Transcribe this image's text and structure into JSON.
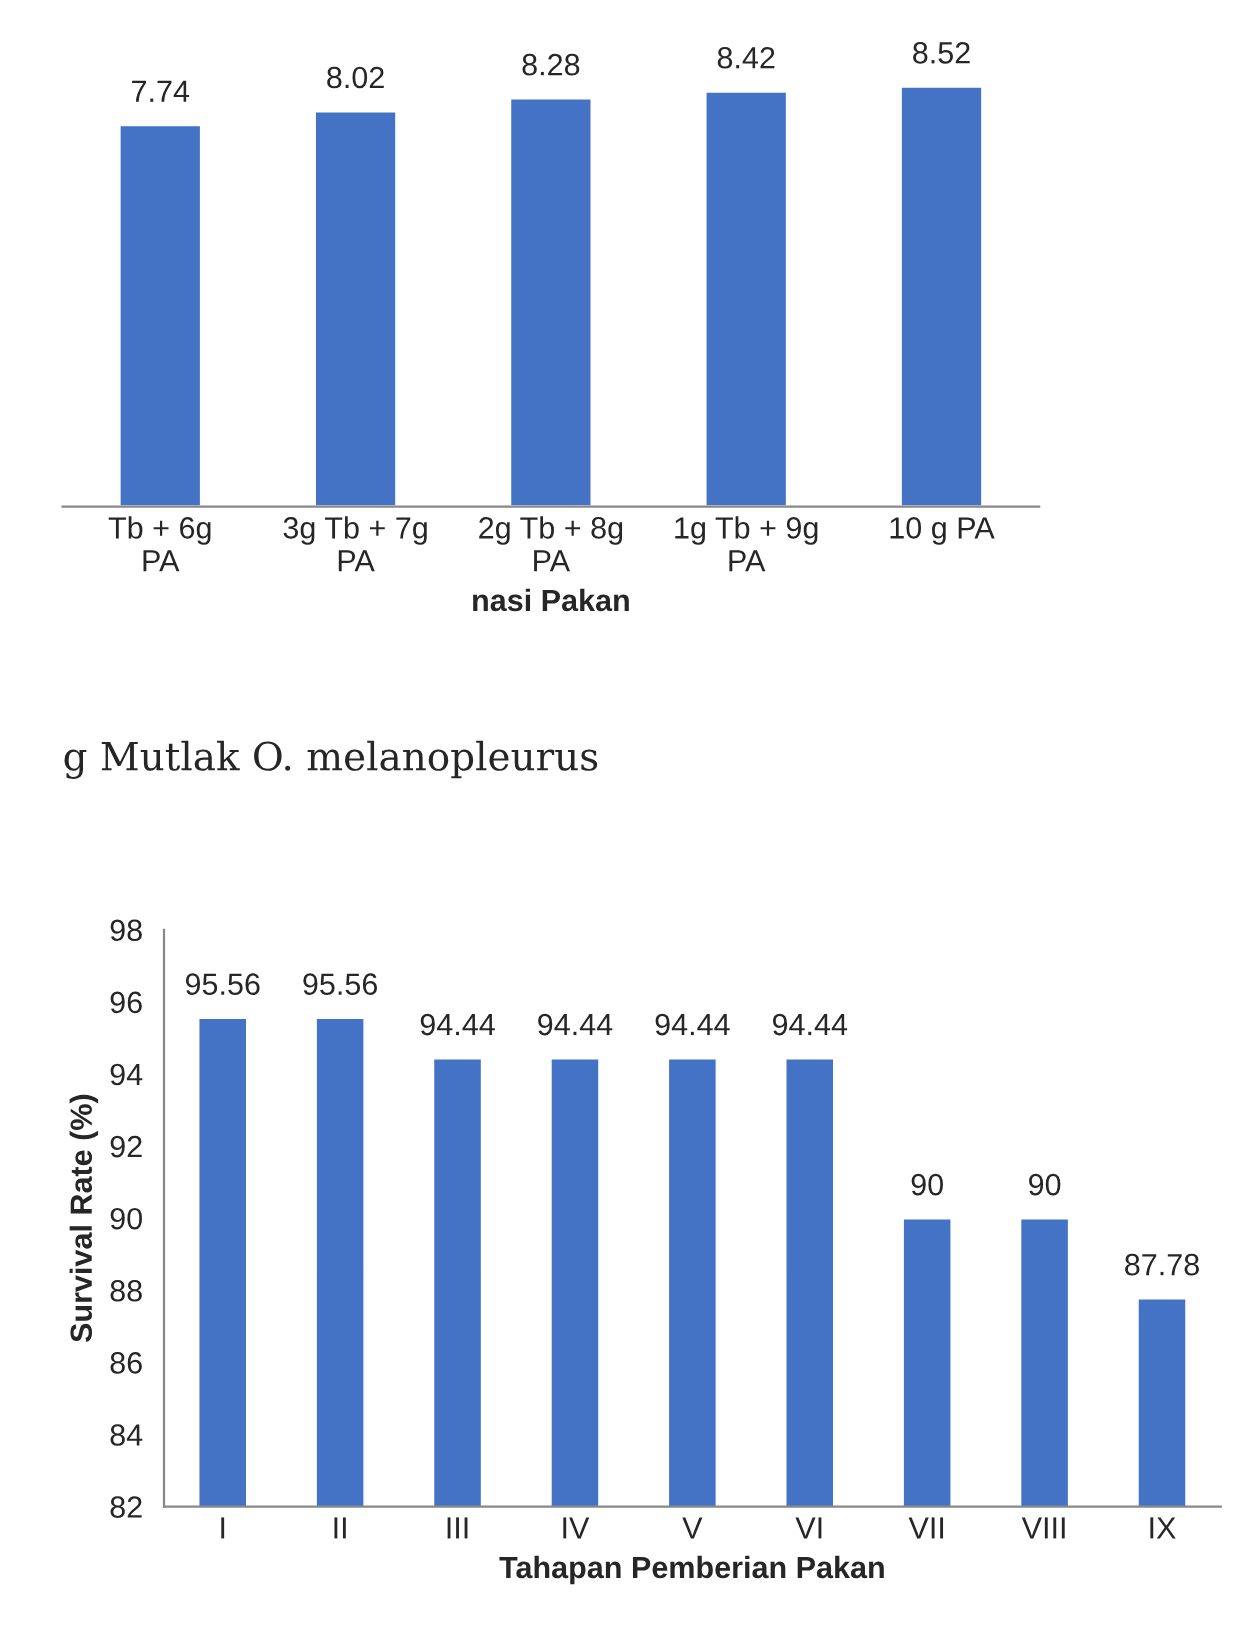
{
  "chart_data": [
    {
      "type": "bar",
      "xlabel": "nasi Pakan",
      "categories": [
        "Tb + 6g\nPA",
        "3g Tb + 7g\nPA",
        "2g Tb + 8g\nPA",
        "1g Tb + 9g\nPA",
        "10 g PA"
      ],
      "values": [
        7.74,
        8.02,
        8.28,
        8.42,
        8.52
      ],
      "color": "#4472c4",
      "data_labels": true,
      "tick_labels": "x",
      "grid": false,
      "legend": false,
      "annotations": [
        "g Mutlak O. melanopleurus"
      ]
    },
    {
      "type": "bar",
      "xlabel": "Tahapan Pemberian Pakan",
      "ylabel": "Survival Rate (%)",
      "categories": [
        "I",
        "II",
        "III",
        "IV",
        "V",
        "VI",
        "VII",
        "VIII",
        "IX"
      ],
      "values": [
        95.56,
        95.56,
        94.44,
        94.44,
        94.44,
        94.44,
        90,
        90,
        87.78
      ],
      "color": "#4472c4",
      "ylim": [
        82,
        98
      ],
      "yticks": [
        82,
        84,
        86,
        88,
        90,
        92,
        94,
        96,
        98
      ],
      "data_labels": true,
      "grid": false,
      "legend": false
    }
  ]
}
